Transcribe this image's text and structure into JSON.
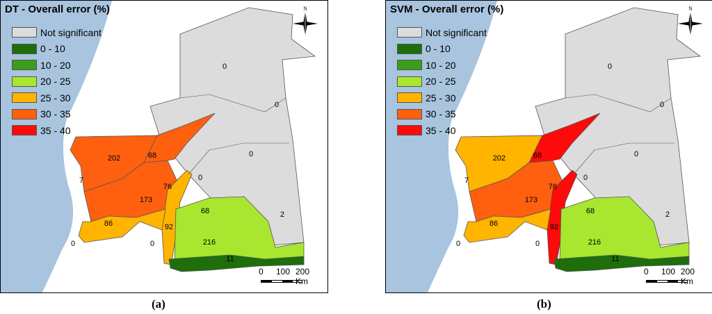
{
  "colors": {
    "ocean": "#a8c4de",
    "land": "#ffffff",
    "not_significant": "#dcdcdc",
    "c0_10": "#1e6e0c",
    "c10_20": "#3a9e1a",
    "c20_25": "#a8e630",
    "c25_30": "#ffb400",
    "c30_35": "#ff6010",
    "c35_40": "#ff0a0a",
    "outline": "#555555"
  },
  "legend": [
    {
      "label": "Not significant",
      "color": "#dcdcdc"
    },
    {
      "label": "0 - 10",
      "color": "#1e6e0c"
    },
    {
      "label": "10 - 20",
      "color": "#3a9e1a"
    },
    {
      "label": "20 - 25",
      "color": "#a8e630"
    },
    {
      "label": "25 - 30",
      "color": "#ffb400"
    },
    {
      "label": "30 - 35",
      "color": "#ff6010"
    },
    {
      "label": "35 - 40",
      "color": "#ff0a0a"
    }
  ],
  "north_label": "N",
  "scale": {
    "v0": "0",
    "v1": "100",
    "v2": "200 Km"
  },
  "maps": [
    {
      "title": "DT - Overall error (%)",
      "caption": "(a)",
      "zones": {
        "north": "#dcdcdc",
        "west_north": "#ff6010",
        "coast_mid": "#ff6010",
        "wedge": "#ff6010",
        "narrow": "#ffb400",
        "south_west": "#ffb400",
        "south_east": "#a8e630",
        "south_strip": "#1e6e0c"
      },
      "labels": [
        "0",
        "0",
        "0",
        "0",
        "202",
        "68",
        "7",
        "173",
        "76",
        "86",
        "92",
        "68",
        "2",
        "216",
        "0",
        "0",
        "11"
      ]
    },
    {
      "title": "SVM - Overall error (%)",
      "caption": "(b)",
      "zones": {
        "north": "#dcdcdc",
        "west_north": "#ffb400",
        "coast_mid": "#ff6010",
        "wedge": "#ff0a0a",
        "narrow": "#ff0a0a",
        "south_west": "#ffb400",
        "south_east": "#a8e630",
        "south_strip": "#1e6e0c"
      },
      "labels": [
        "0",
        "0",
        "0",
        "0",
        "202",
        "68",
        "7",
        "173",
        "76",
        "86",
        "92",
        "68",
        "2",
        "216",
        "0",
        "0",
        "11"
      ]
    }
  ]
}
